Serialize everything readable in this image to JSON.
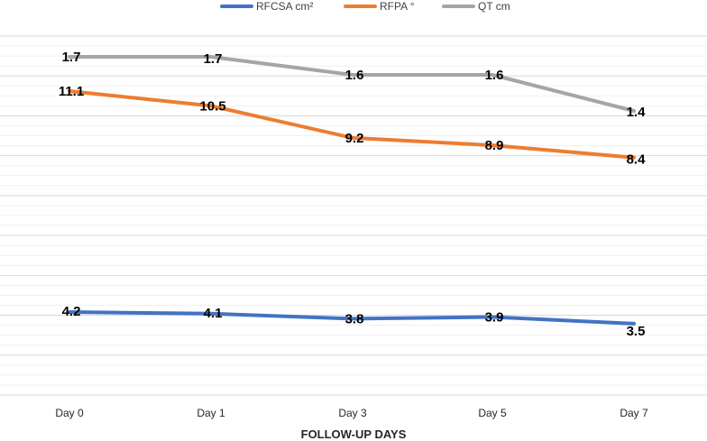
{
  "chart_data": {
    "type": "line",
    "title": "",
    "xlabel": "FOLLOW-UP DAYS",
    "ylabel": "",
    "categories": [
      "Day 0",
      "Day 1",
      "Day 3",
      "Day 5",
      "Day 7"
    ],
    "series": [
      {
        "name": "RFCSA cm²",
        "color": "#4472C4",
        "values": [
          4.2,
          4.1,
          3.8,
          3.9,
          3.5
        ],
        "labels": [
          "4.2",
          "4.1",
          "3.8",
          "3.9",
          "3.5"
        ]
      },
      {
        "name": "RFPA °",
        "color": "#ED7D31",
        "values": [
          11.1,
          10.5,
          9.2,
          8.9,
          8.4
        ],
        "labels": [
          "11.1",
          "10.5",
          "9.2",
          "8.9",
          "8.4"
        ]
      },
      {
        "name": "QT cm",
        "color": "#A5A5A5",
        "values": [
          1.7,
          1.7,
          1.6,
          1.6,
          1.4
        ],
        "labels": [
          "1.7",
          "1.7",
          "1.6",
          "1.6",
          "1.4"
        ]
      }
    ],
    "legend_position": "top",
    "grid": true,
    "gridline_color": "#D9D9D9"
  }
}
